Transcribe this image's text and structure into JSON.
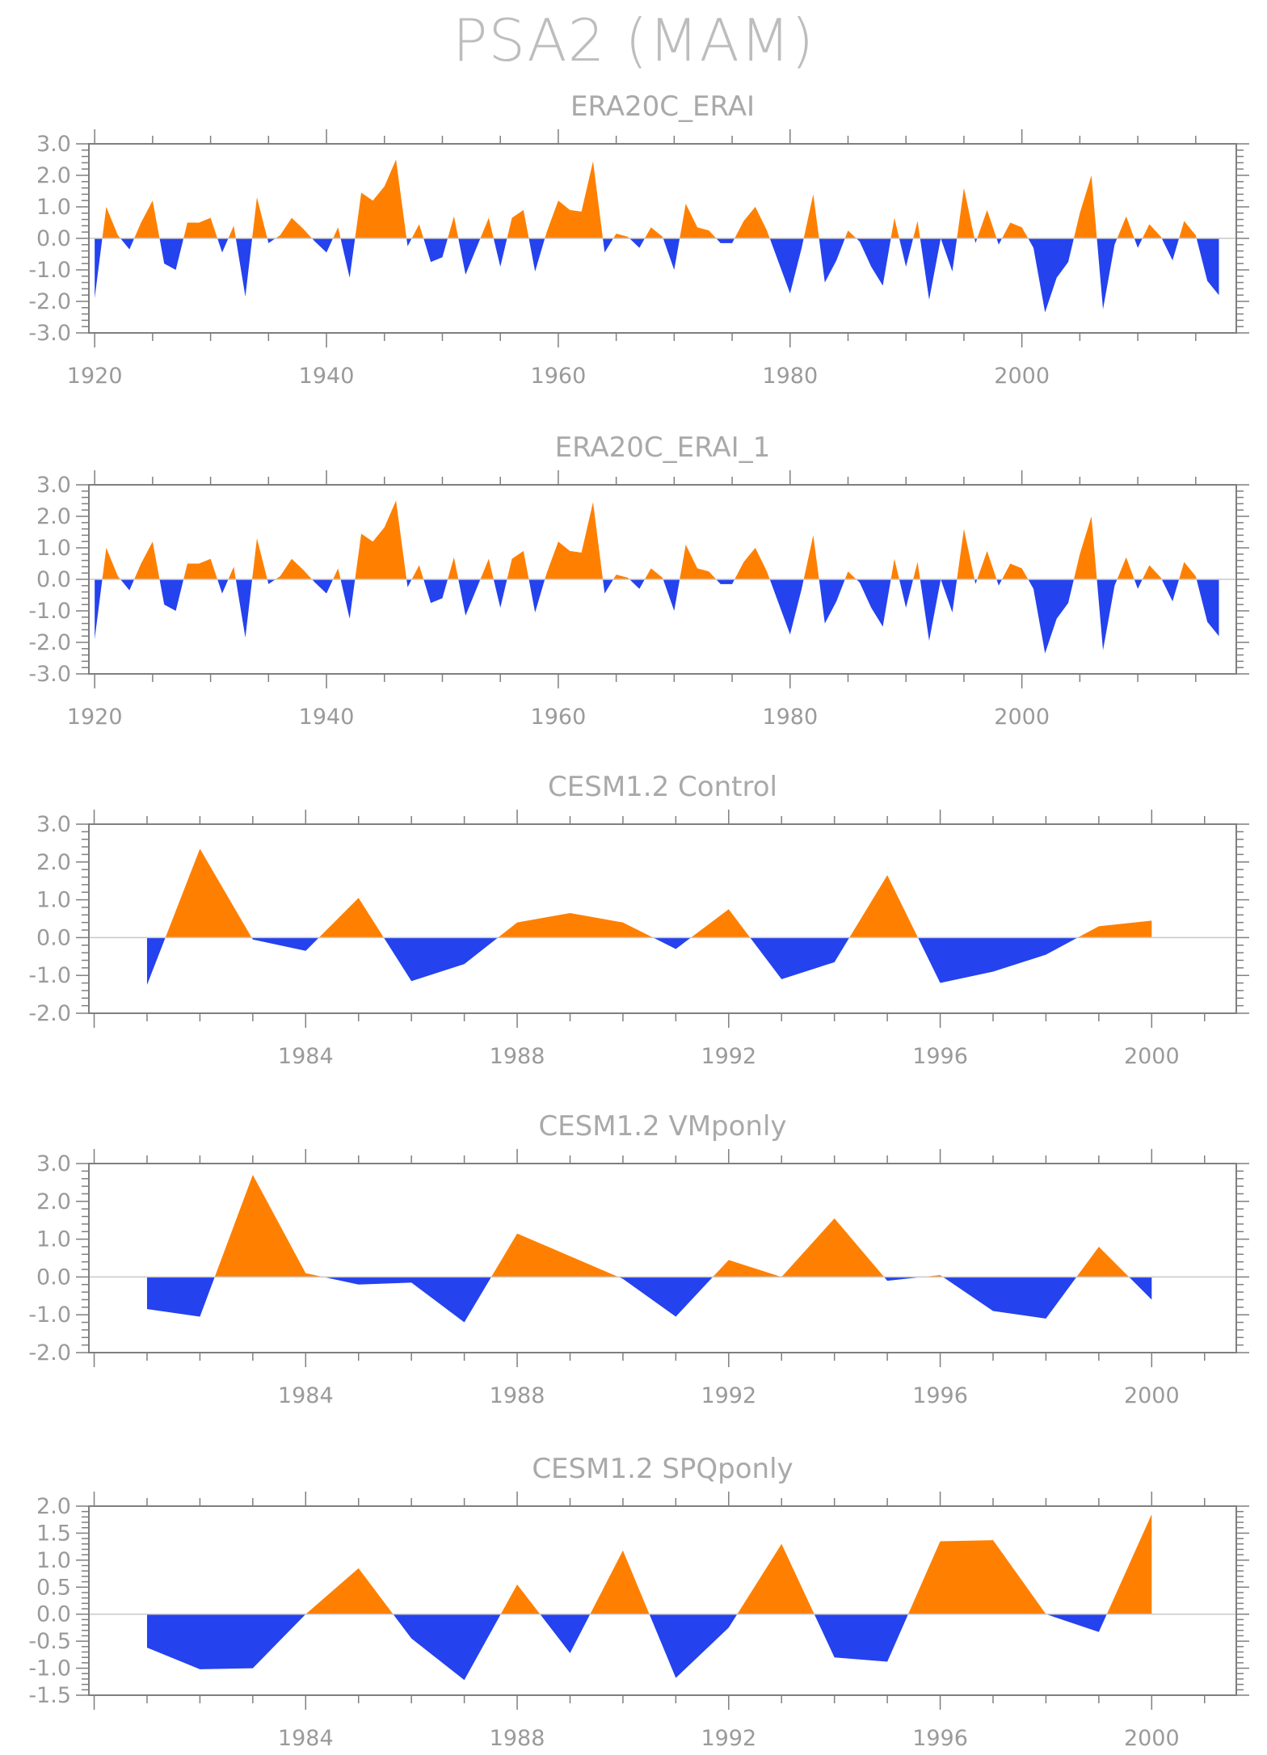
{
  "title": "PSA2 (MAM)",
  "colors": {
    "positive": "#ff8000",
    "negative": "#2442ee",
    "axis": "#7f7f7f",
    "zero_line": "#c8c8c8",
    "text": "#9a9a9a"
  },
  "chart_data": [
    {
      "type": "area",
      "title": "ERA20C_ERAI",
      "xlabel": "",
      "ylabel": "",
      "xlim": [
        1919.5,
        2018.5
      ],
      "ylim": [
        -3,
        3
      ],
      "yticks": [
        "3.0",
        "2.0",
        "1.0",
        "0.0",
        "-1.0",
        "-2.0",
        "-3.0"
      ],
      "xticks": [
        "1920",
        "1940",
        "1960",
        "1980",
        "2000"
      ],
      "grid": false,
      "x_start": 1920,
      "values": [
        -1.9,
        1.0,
        0.1,
        -0.35,
        0.5,
        1.2,
        -0.8,
        -1.0,
        0.5,
        0.5,
        0.65,
        -0.45,
        0.4,
        -1.85,
        1.3,
        -0.15,
        0.1,
        0.65,
        0.3,
        -0.1,
        -0.45,
        0.35,
        -1.25,
        1.45,
        1.2,
        1.65,
        2.5,
        -0.25,
        0.45,
        -0.75,
        -0.6,
        0.7,
        -1.15,
        -0.25,
        0.65,
        -0.9,
        0.65,
        0.9,
        -1.05,
        0.2,
        1.2,
        0.9,
        0.85,
        2.45,
        -0.45,
        0.15,
        0.05,
        -0.3,
        0.35,
        0.05,
        -1.0,
        1.1,
        0.35,
        0.25,
        -0.15,
        -0.15,
        0.55,
        1.0,
        0.25,
        -0.75,
        -1.75,
        -0.3,
        1.4,
        -1.4,
        -0.7,
        0.25,
        -0.1,
        -0.9,
        -1.5,
        0.65,
        -0.9,
        0.55,
        -1.95,
        0.0,
        -1.05,
        1.6,
        -0.15,
        0.9,
        -0.2,
        0.5,
        0.35,
        -0.3,
        -2.35,
        -1.25,
        -0.75,
        0.8,
        2.0,
        -2.25,
        -0.2,
        0.7,
        -0.3,
        0.45,
        0.05,
        -0.7,
        0.55,
        0.1,
        -1.35,
        -1.8
      ]
    },
    {
      "type": "area",
      "title": "ERA20C_ERAI_1",
      "xlabel": "",
      "ylabel": "",
      "xlim": [
        1919.5,
        2018.5
      ],
      "ylim": [
        -3,
        3
      ],
      "yticks": [
        "3.0",
        "2.0",
        "1.0",
        "0.0",
        "-1.0",
        "-2.0",
        "-3.0"
      ],
      "xticks": [
        "1920",
        "1940",
        "1960",
        "1980",
        "2000"
      ],
      "grid": false,
      "x_start": 1920,
      "values": [
        -1.9,
        1.0,
        0.1,
        -0.35,
        0.5,
        1.2,
        -0.8,
        -1.0,
        0.5,
        0.5,
        0.65,
        -0.45,
        0.4,
        -1.85,
        1.3,
        -0.15,
        0.1,
        0.65,
        0.3,
        -0.1,
        -0.45,
        0.35,
        -1.25,
        1.45,
        1.2,
        1.65,
        2.5,
        -0.25,
        0.45,
        -0.75,
        -0.6,
        0.7,
        -1.15,
        -0.25,
        0.65,
        -0.9,
        0.65,
        0.9,
        -1.05,
        0.2,
        1.2,
        0.9,
        0.85,
        2.45,
        -0.45,
        0.15,
        0.05,
        -0.3,
        0.35,
        0.05,
        -1.0,
        1.1,
        0.35,
        0.25,
        -0.15,
        -0.15,
        0.55,
        1.0,
        0.25,
        -0.75,
        -1.75,
        -0.3,
        1.4,
        -1.4,
        -0.7,
        0.25,
        -0.1,
        -0.9,
        -1.5,
        0.65,
        -0.9,
        0.55,
        -1.95,
        0.0,
        -1.05,
        1.6,
        -0.15,
        0.9,
        -0.2,
        0.5,
        0.35,
        -0.3,
        -2.35,
        -1.25,
        -0.75,
        0.8,
        2.0,
        -2.25,
        -0.2,
        0.7,
        -0.3,
        0.45,
        0.05,
        -0.7,
        0.55,
        0.1,
        -1.35,
        -1.8
      ]
    },
    {
      "type": "area",
      "title": "CESM1.2 Control",
      "xlabel": "",
      "ylabel": "",
      "xlim": [
        1979.9,
        2001.6
      ],
      "ylim": [
        -2,
        3
      ],
      "yticks": [
        "3.0",
        "2.0",
        "1.0",
        "0.0",
        "-1.0",
        "-2.0"
      ],
      "xticks": [
        "1984",
        "1988",
        "1992",
        "1996",
        "2000"
      ],
      "grid": false,
      "x_start": 1981,
      "values": [
        -1.25,
        2.35,
        -0.05,
        -0.35,
        1.05,
        -1.15,
        -0.7,
        0.4,
        0.65,
        0.4,
        -0.3,
        0.75,
        -1.1,
        -0.65,
        1.65,
        -1.2,
        -0.9,
        -0.45,
        0.3,
        0.45
      ]
    },
    {
      "type": "area",
      "title": "CESM1.2 VMponly",
      "xlabel": "",
      "ylabel": "",
      "xlim": [
        1979.9,
        2001.6
      ],
      "ylim": [
        -2,
        3
      ],
      "yticks": [
        "3.0",
        "2.0",
        "1.0",
        "0.0",
        "-1.0",
        "-2.0"
      ],
      "xticks": [
        "1984",
        "1988",
        "1992",
        "1996",
        "2000"
      ],
      "grid": false,
      "x_start": 1981,
      "values": [
        -0.85,
        -1.05,
        2.7,
        0.1,
        -0.2,
        -0.15,
        -1.2,
        1.15,
        0.55,
        -0.05,
        -1.05,
        0.45,
        0.0,
        1.55,
        -0.1,
        0.05,
        -0.9,
        -1.1,
        0.8,
        -0.6
      ]
    },
    {
      "type": "area",
      "title": "CESM1.2 SPQponly",
      "xlabel": "",
      "ylabel": "",
      "xlim": [
        1979.9,
        2001.6
      ],
      "ylim": [
        -1.5,
        2
      ],
      "yticks": [
        "2.0",
        "1.5",
        "1.0",
        "0.5",
        "0.0",
        "-0.5",
        "-1.0",
        "-1.5"
      ],
      "xticks": [
        "1984",
        "1988",
        "1992",
        "1996",
        "2000"
      ],
      "grid": false,
      "x_start": 1981,
      "values": [
        -0.62,
        -1.02,
        -1.0,
        0.0,
        0.85,
        -0.45,
        -1.22,
        0.55,
        -0.72,
        1.18,
        -1.18,
        -0.25,
        1.3,
        -0.8,
        -0.88,
        1.35,
        1.37,
        0.0,
        -0.33,
        1.85
      ]
    }
  ]
}
